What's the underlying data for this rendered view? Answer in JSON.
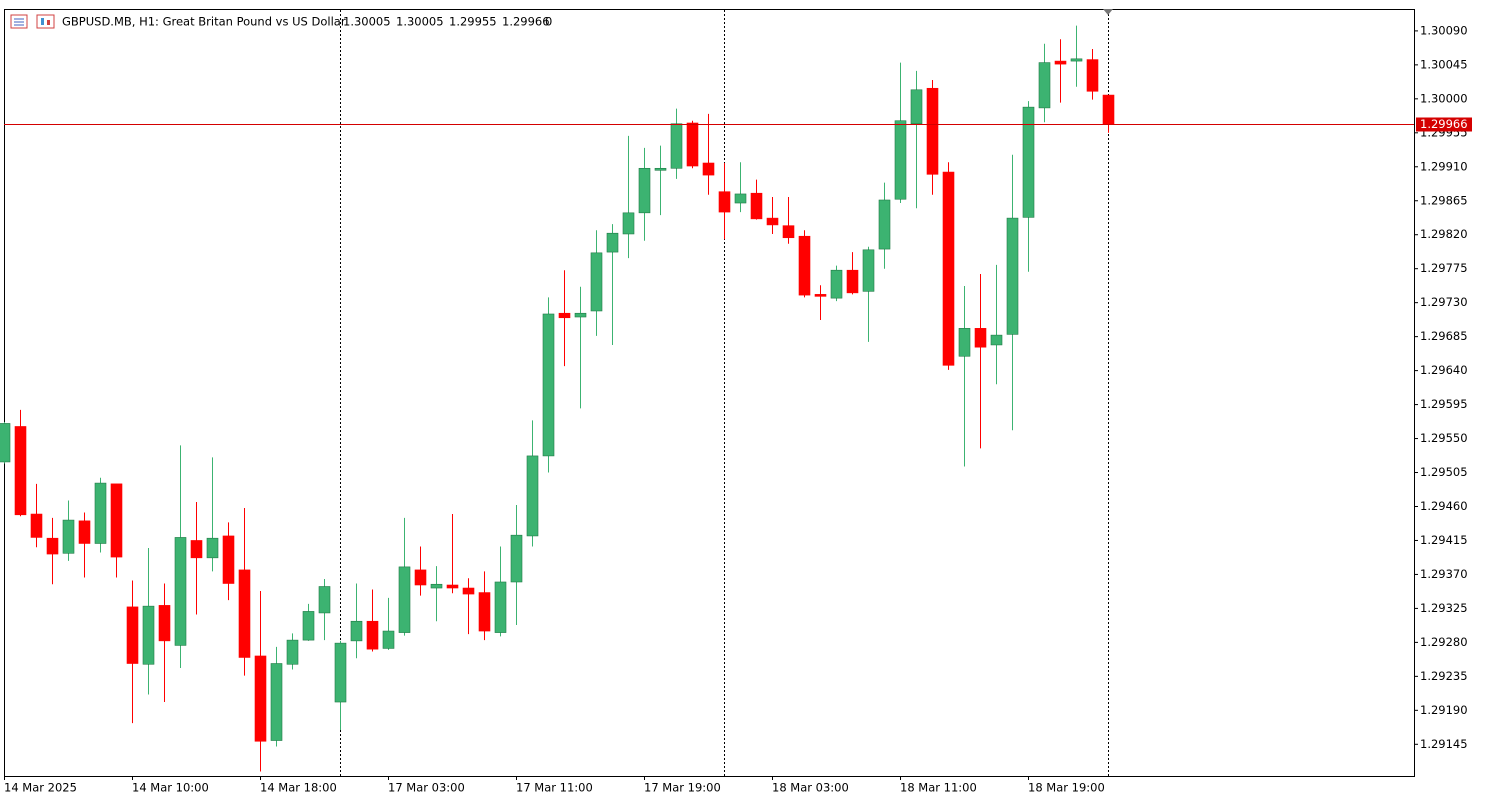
{
  "chart_data": {
    "type": "candlestick",
    "symbol": "GBPUSD.MB, H1:  Great Britan Pound vs US Dollar",
    "volume": 0,
    "categories": [
      "14 Mar 2025",
      null,
      null,
      null,
      null,
      null,
      null,
      null,
      "14 Mar 10:00",
      null,
      null,
      null,
      null,
      null,
      null,
      null,
      "14 Mar 18:00",
      null,
      null,
      null,
      null,
      null,
      null,
      null,
      "17 Mar 03:00",
      null,
      null,
      null,
      null,
      null,
      null,
      null,
      "17 Mar 11:00",
      null,
      null,
      null,
      null,
      null,
      null,
      null,
      "17 Mar 19:00",
      null,
      null,
      null,
      null,
      null,
      null,
      null,
      "18 Mar 03:00",
      null,
      null,
      null,
      null,
      null,
      null,
      null,
      "18 Mar 11:00",
      null,
      null,
      null,
      null,
      null,
      null,
      null,
      "18 Mar 19:00",
      null,
      null,
      null,
      null,
      null
    ],
    "open": [
      1.29519,
      1.29566,
      1.2945,
      1.29418,
      1.29398,
      1.29441,
      1.29411,
      1.2949,
      1.29327,
      1.29251,
      1.29329,
      1.29276,
      1.29415,
      1.29392,
      1.29421,
      1.29376,
      1.29262,
      1.2915,
      1.29251,
      1.29283,
      1.29319,
      1.29201,
      1.29282,
      1.29308,
      1.29272,
      1.29293,
      1.29376,
      1.29352,
      1.29356,
      1.29352,
      1.29346,
      1.29293,
      1.2936,
      1.29421,
      1.29527,
      1.29716,
      1.29711,
      1.29719,
      1.29797,
      1.29821,
      1.29849,
      1.29906,
      1.29908,
      1.29968,
      1.29915,
      1.29877,
      1.29862,
      1.29875,
      1.29842,
      1.29832,
      1.29818,
      1.29741,
      1.29736,
      1.29773,
      1.29745,
      1.29801,
      1.29867,
      1.29967,
      1.30014,
      1.29903,
      1.29659,
      1.29696,
      1.29674,
      1.29688,
      1.29843,
      1.29988,
      1.3005,
      1.3005,
      1.30052,
      1.30005
    ],
    "high": [
      1.29572,
      1.29588,
      1.2949,
      1.29445,
      1.29468,
      1.29452,
      1.29498,
      1.2949,
      1.29362,
      1.29405,
      1.29358,
      1.29541,
      1.29466,
      1.29525,
      1.29439,
      1.29458,
      1.29348,
      1.29274,
      1.29292,
      1.29331,
      1.29364,
      1.29282,
      1.29358,
      1.2935,
      1.29339,
      1.29445,
      1.29407,
      1.29381,
      1.2945,
      1.29365,
      1.29374,
      1.29407,
      1.29462,
      1.29574,
      1.29737,
      1.29773,
      1.29751,
      1.29826,
      1.29834,
      1.29951,
      1.29935,
      1.29938,
      1.29987,
      1.29971,
      1.2998,
      1.29915,
      1.29916,
      1.29893,
      1.2987,
      1.2987,
      1.29826,
      1.29753,
      1.29779,
      1.29797,
      1.29804,
      1.29889,
      1.30048,
      1.30037,
      1.30025,
      1.29916,
      1.29752,
      1.29768,
      1.2978,
      1.29926,
      1.29997,
      1.30073,
      1.30079,
      1.30097,
      1.30066,
      1.30005
    ],
    "low": [
      1.29517,
      1.29447,
      1.29406,
      1.29357,
      1.29388,
      1.29366,
      1.29399,
      1.29366,
      1.29173,
      1.29211,
      1.29201,
      1.29246,
      1.29317,
      1.29374,
      1.29336,
      1.29236,
      1.29109,
      1.29142,
      1.29244,
      1.29282,
      1.29283,
      1.29164,
      1.29259,
      1.29268,
      1.2927,
      1.29289,
      1.29342,
      1.29308,
      1.29345,
      1.29291,
      1.29283,
      1.29288,
      1.29303,
      1.29407,
      1.29505,
      1.29646,
      1.2959,
      1.29686,
      1.29674,
      1.29789,
      1.29812,
      1.29846,
      1.29894,
      1.29908,
      1.29873,
      1.29814,
      1.2985,
      1.2984,
      1.29821,
      1.29808,
      1.29737,
      1.29707,
      1.29732,
      1.29741,
      1.29678,
      1.29775,
      1.29862,
      1.29855,
      1.29873,
      1.29641,
      1.29513,
      1.29537,
      1.29622,
      1.29561,
      1.29771,
      1.29969,
      1.29995,
      1.30016,
      1.29999,
      1.29955
    ],
    "close": [
      1.2957,
      1.29449,
      1.29419,
      1.29397,
      1.29442,
      1.29411,
      1.29491,
      1.29393,
      1.29252,
      1.29328,
      1.29282,
      1.29419,
      1.29392,
      1.29418,
      1.29358,
      1.2926,
      1.29149,
      1.29252,
      1.29283,
      1.29321,
      1.29354,
      1.29279,
      1.29308,
      1.29271,
      1.29295,
      1.2938,
      1.29356,
      1.29357,
      1.29352,
      1.29344,
      1.29295,
      1.2936,
      1.29422,
      1.29527,
      1.29715,
      1.2971,
      1.29716,
      1.29796,
      1.29822,
      1.29849,
      1.29908,
      1.29908,
      1.29967,
      1.29911,
      1.29899,
      1.2985,
      1.29874,
      1.29841,
      1.29833,
      1.29816,
      1.2974,
      1.29739,
      1.29773,
      1.29743,
      1.298,
      1.29866,
      1.29971,
      1.30012,
      1.299,
      1.29647,
      1.29696,
      1.29671,
      1.29687,
      1.29842,
      1.29989,
      1.30048,
      1.30046,
      1.30053,
      1.3001,
      1.29966
    ],
    "up_color": "#3cb371",
    "down_color": "#ff0000",
    "current_price": 1.29966,
    "current_price_color": "#d40000",
    "ylim": [
      1.29103,
      1.30119
    ],
    "yticks": [
      {
        "value": 1.3009,
        "label": "1.30090"
      },
      1.30045,
      {
        "value": 1.3,
        "label": "1.30000"
      },
      1.29955,
      {
        "value": 1.2991,
        "label": "1.29910"
      },
      1.29865,
      {
        "value": 1.2982,
        "label": "1.29820"
      },
      1.29775,
      {
        "value": 1.2973,
        "label": "1.29730"
      },
      1.29685,
      {
        "value": 1.2964,
        "label": "1.29640"
      },
      1.29595,
      {
        "value": 1.2955,
        "label": "1.29550"
      },
      1.29505,
      {
        "value": 1.2946,
        "label": "1.29460"
      },
      1.29415,
      {
        "value": 1.2937,
        "label": "1.29370"
      },
      1.29325,
      {
        "value": 1.2928,
        "label": "1.29280"
      },
      1.29235,
      {
        "value": 1.2919,
        "label": "1.29190"
      },
      1.29145
    ]
  }
}
